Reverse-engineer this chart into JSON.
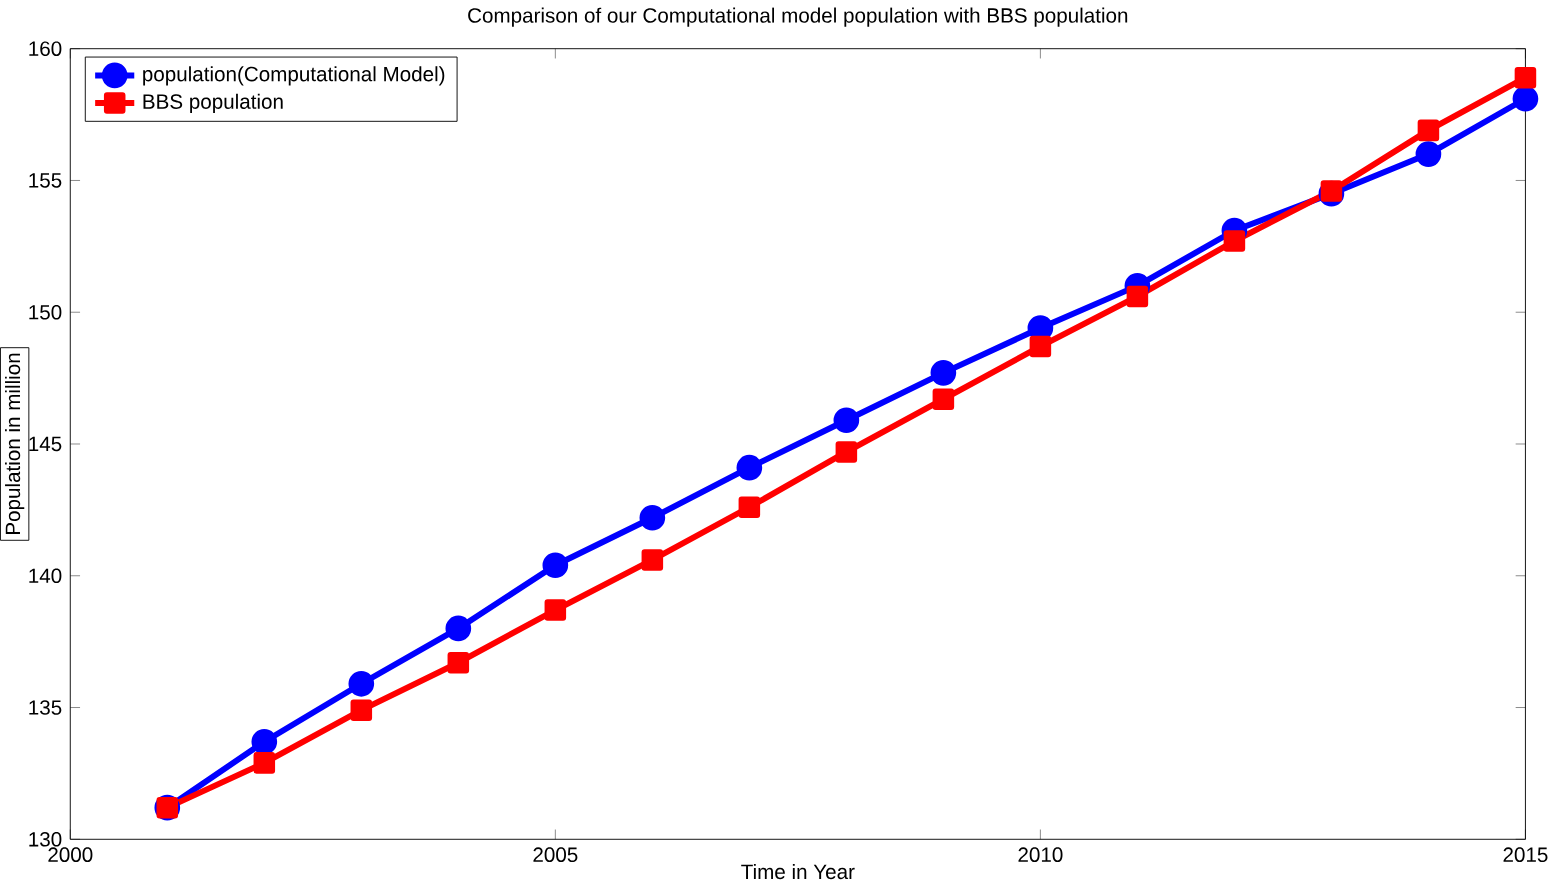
{
  "chart_data": {
    "type": "line",
    "title": "Comparison of our Computational model population with BBS population",
    "xlabel": "Time in Year",
    "ylabel": "Population in million",
    "x": [
      2001,
      2002,
      2003,
      2004,
      2005,
      2006,
      2007,
      2008,
      2009,
      2010,
      2011,
      2012,
      2013,
      2014,
      2015
    ],
    "series": [
      {
        "name": "population(Computational Model)",
        "color": "#0000ff",
        "marker": "circle",
        "values": [
          131.2,
          133.7,
          135.9,
          138.0,
          140.4,
          142.2,
          144.1,
          145.9,
          147.7,
          149.4,
          151.0,
          153.1,
          154.5,
          156.0,
          158.1
        ]
      },
      {
        "name": "BBS population",
        "color": "#ff0000",
        "marker": "square",
        "values": [
          131.2,
          132.9,
          134.9,
          136.7,
          138.7,
          140.6,
          142.6,
          144.7,
          146.7,
          148.7,
          150.6,
          152.7,
          154.6,
          156.9,
          158.9
        ]
      }
    ],
    "xlim": [
      2000,
      2015
    ],
    "xticks": [
      2000,
      2005,
      2010,
      2015
    ],
    "ylim": [
      130,
      160
    ],
    "yticks": [
      130,
      135,
      140,
      145,
      150,
      155,
      160
    ],
    "legend": "top left",
    "grid": false,
    "line_style": "solid"
  }
}
